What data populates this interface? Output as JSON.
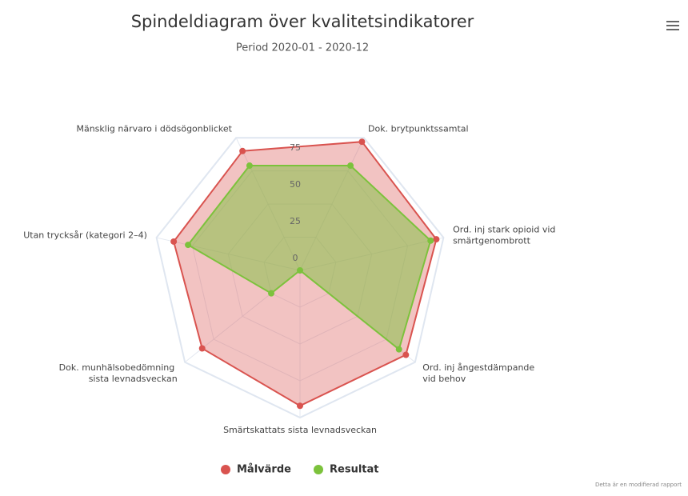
{
  "chart_data": {
    "type": "radar",
    "title": "Spindeldiagram över kvalitetsindikatorer",
    "subtitle": "Period 2020-01 - 2020-12",
    "categories": [
      "Mänsklig närvaro i dödsögonblicket",
      "Dok. brytpunktssamtal",
      "Ord. inj stark opioid vid smärtgenombrott",
      "Ord. inj ångestdämpande vid behov",
      "Smärtskattats sista levnadsveckan",
      "Dok. munhälsobedömning sista levnadsveckan",
      "Utan trycksår (kategori 2–4)"
    ],
    "series": [
      {
        "name": "Målvärde",
        "color": "#d9534f",
        "values": [
          90,
          97,
          95,
          92,
          92,
          85,
          88
        ]
      },
      {
        "name": "Resultat",
        "color": "#7cc23c",
        "values": [
          79,
          79,
          91,
          86,
          0,
          25,
          78
        ]
      }
    ],
    "ylim": [
      0,
      100
    ],
    "yticks": [
      0,
      25,
      50,
      75
    ],
    "grid": true,
    "footnote": "Detta är en modifierad rapport"
  }
}
